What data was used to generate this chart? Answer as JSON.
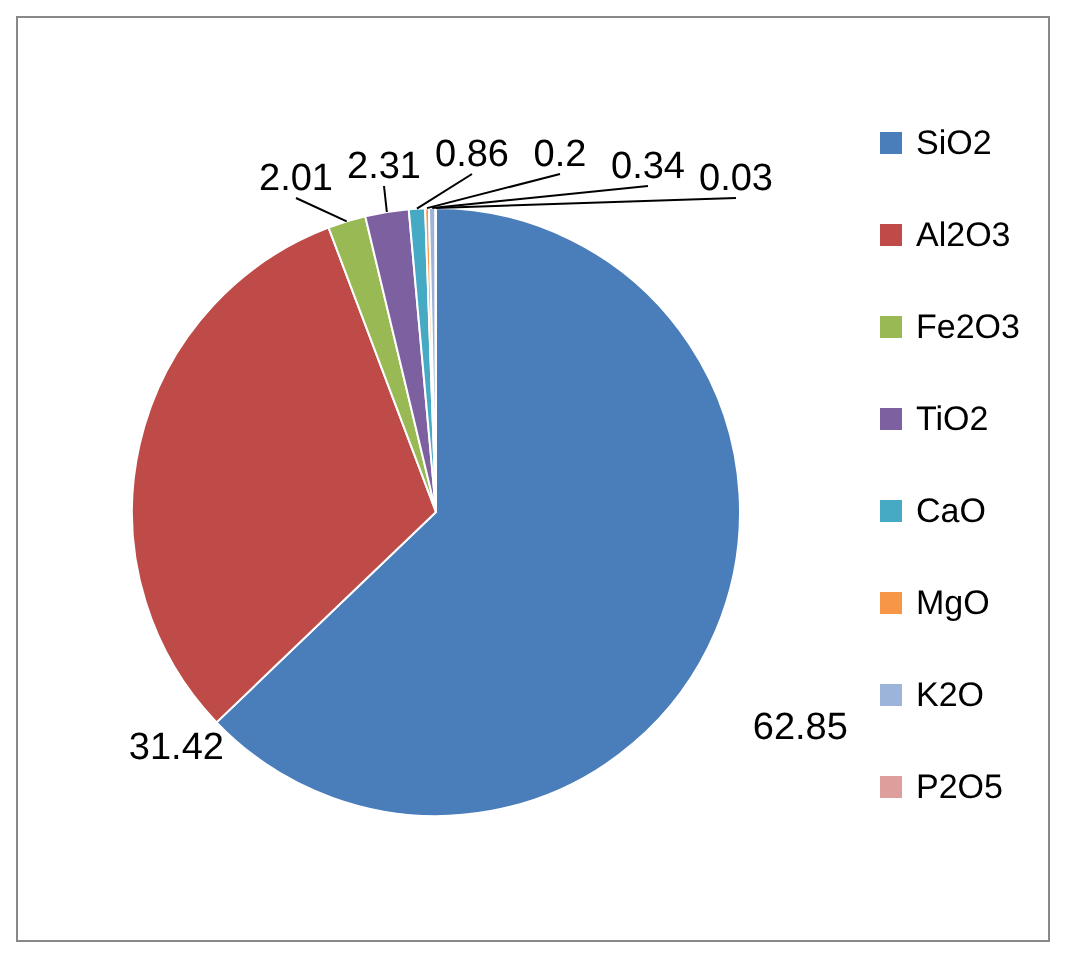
{
  "chart_data": {
    "type": "pie",
    "categories": [
      "SiO2",
      "Al2O3",
      "Fe2O3",
      "TiO2",
      "CaO",
      "MgO",
      "K2O",
      "P2O5"
    ],
    "values": [
      62.85,
      31.42,
      2.01,
      2.31,
      0.86,
      0.2,
      0.34,
      0.03
    ],
    "colors": [
      "#4a7ebb",
      "#be4b48",
      "#98b954",
      "#7d60a0",
      "#46aac5",
      "#f79646",
      "#9cb4da",
      "#dd9e9c"
    ],
    "data_labels": true,
    "legend": "right"
  }
}
